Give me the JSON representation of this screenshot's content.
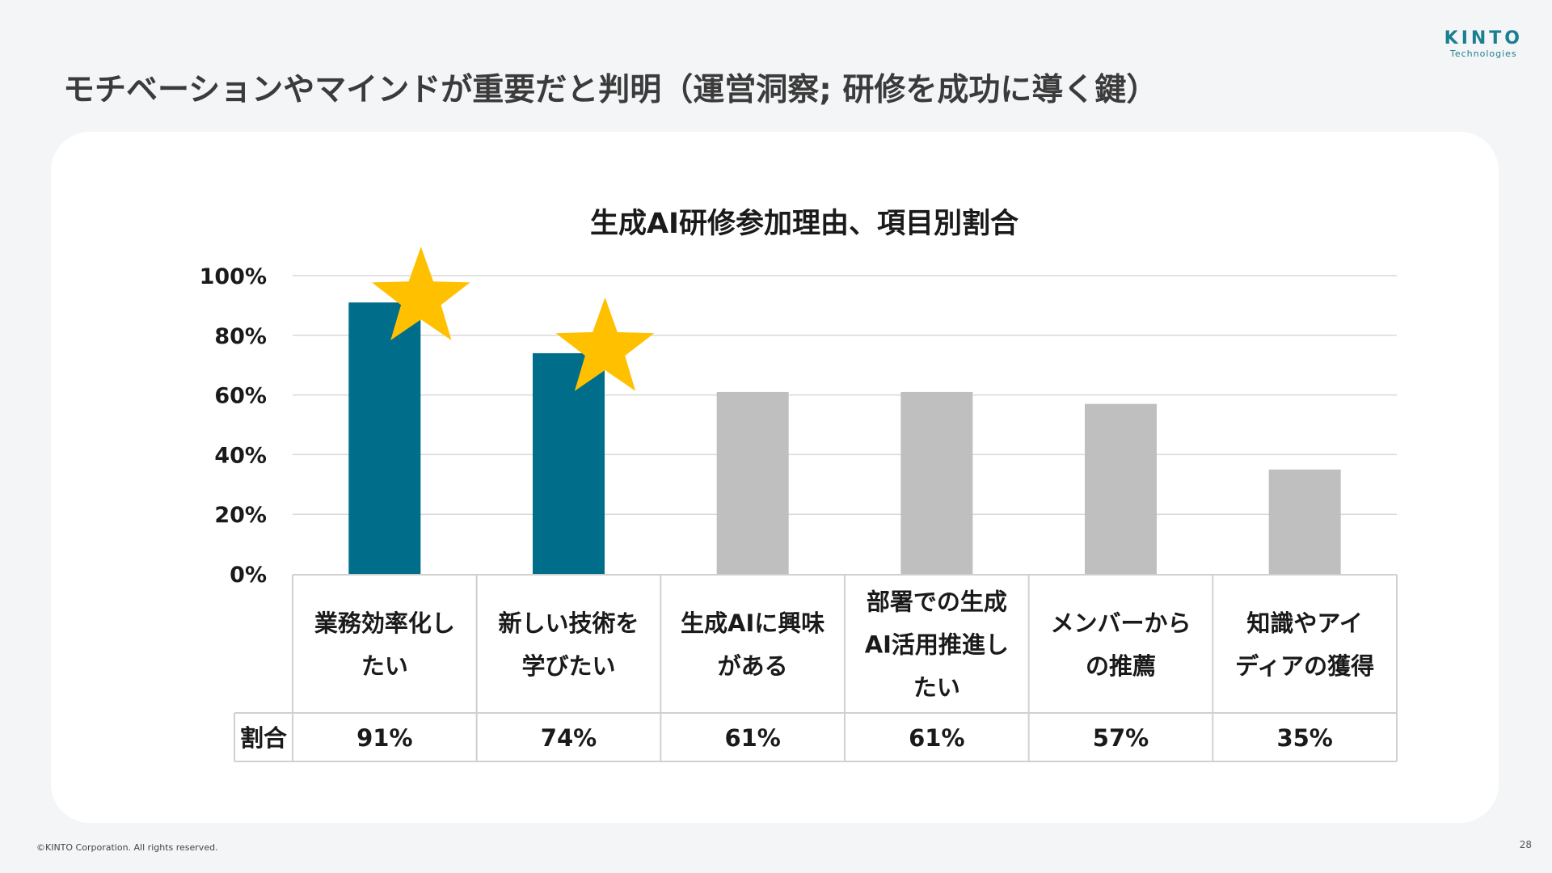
{
  "slide": {
    "title": "モチベーションやマインドが重要だと判明（運営洞察; 研修を成功に導く鍵）",
    "logo_brand": "KINTO",
    "logo_sub": "Technologies",
    "copyright": "©KINTO Corporation. All rights reserved.",
    "page_number": "28"
  },
  "chart_data": {
    "type": "bar",
    "title": "生成AI研修参加理由、項目別割合",
    "categories": [
      [
        "業務効率化し",
        "たい"
      ],
      [
        "新しい技術を",
        "学びたい"
      ],
      [
        "生成AIに興味",
        "がある"
      ],
      [
        "部署での生成",
        "AI活用推進し",
        "たい"
      ],
      [
        "メンバーから",
        "の推薦"
      ],
      [
        "知識やアイ",
        "ディアの獲得"
      ]
    ],
    "series": [
      {
        "name": "割合",
        "values": [
          91,
          74,
          61,
          61,
          57,
          35
        ],
        "labels": [
          "91%",
          "74%",
          "61%",
          "61%",
          "57%",
          "35%"
        ]
      }
    ],
    "highlighted": [
      true,
      true,
      false,
      false,
      false,
      false
    ],
    "starred": [
      true,
      true,
      false,
      false,
      false,
      false
    ],
    "y_ticks": [
      "0%",
      "20%",
      "40%",
      "60%",
      "80%",
      "100%"
    ],
    "ylim": [
      0,
      100
    ],
    "grid": true,
    "colors": {
      "highlight": "#006e8a",
      "normal": "#bfbfbf",
      "star": "#ffc000",
      "grid": "#d9d9d9"
    }
  }
}
